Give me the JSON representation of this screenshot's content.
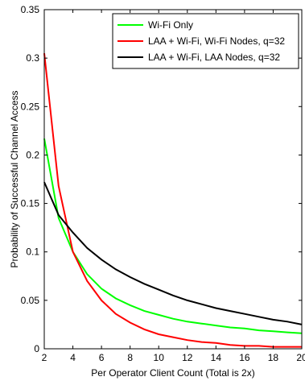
{
  "chart_data": {
    "type": "line",
    "title": "",
    "xlabel": "Per Operator Client Count (Total is 2x)",
    "ylabel": "Probability of Successful Channel Access",
    "xlim": [
      2,
      20
    ],
    "ylim": [
      0,
      0.35
    ],
    "x_ticks": [
      "2",
      "4",
      "6",
      "8",
      "10",
      "12",
      "14",
      "16",
      "18",
      "20"
    ],
    "y_ticks": [
      "0",
      "0.05",
      "0.1",
      "0.15",
      "0.2",
      "0.25",
      "0.3",
      "0.35"
    ],
    "grid": false,
    "legend_position": "top-right",
    "series": [
      {
        "name": "Wi-Fi Only",
        "color": "#00ff00",
        "x": [
          2,
          3,
          4,
          5,
          6,
          7,
          8,
          9,
          10,
          11,
          12,
          13,
          14,
          15,
          16,
          17,
          18,
          19,
          20
        ],
        "values": [
          0.217,
          0.135,
          0.1,
          0.077,
          0.062,
          0.052,
          0.045,
          0.039,
          0.035,
          0.031,
          0.028,
          0.026,
          0.024,
          0.022,
          0.021,
          0.019,
          0.018,
          0.017,
          0.016
        ]
      },
      {
        "name": "LAA + Wi-Fi, Wi-Fi Nodes, q=32",
        "color": "#ff0000",
        "x": [
          2,
          3,
          4,
          5,
          6,
          7,
          8,
          9,
          10,
          11,
          12,
          13,
          14,
          15,
          16,
          17,
          18,
          19,
          20
        ],
        "values": [
          0.305,
          0.168,
          0.1,
          0.07,
          0.05,
          0.036,
          0.027,
          0.02,
          0.015,
          0.012,
          0.009,
          0.007,
          0.006,
          0.004,
          0.003,
          0.003,
          0.002,
          0.002,
          0.002
        ]
      },
      {
        "name": "LAA + Wi-Fi, LAA Nodes, q=32",
        "color": "#000000",
        "x": [
          2,
          3,
          4,
          5,
          6,
          7,
          8,
          9,
          10,
          11,
          12,
          13,
          14,
          15,
          16,
          17,
          18,
          19,
          20
        ],
        "values": [
          0.172,
          0.138,
          0.12,
          0.104,
          0.092,
          0.082,
          0.074,
          0.067,
          0.061,
          0.055,
          0.05,
          0.046,
          0.042,
          0.039,
          0.036,
          0.033,
          0.03,
          0.028,
          0.025
        ]
      }
    ]
  }
}
